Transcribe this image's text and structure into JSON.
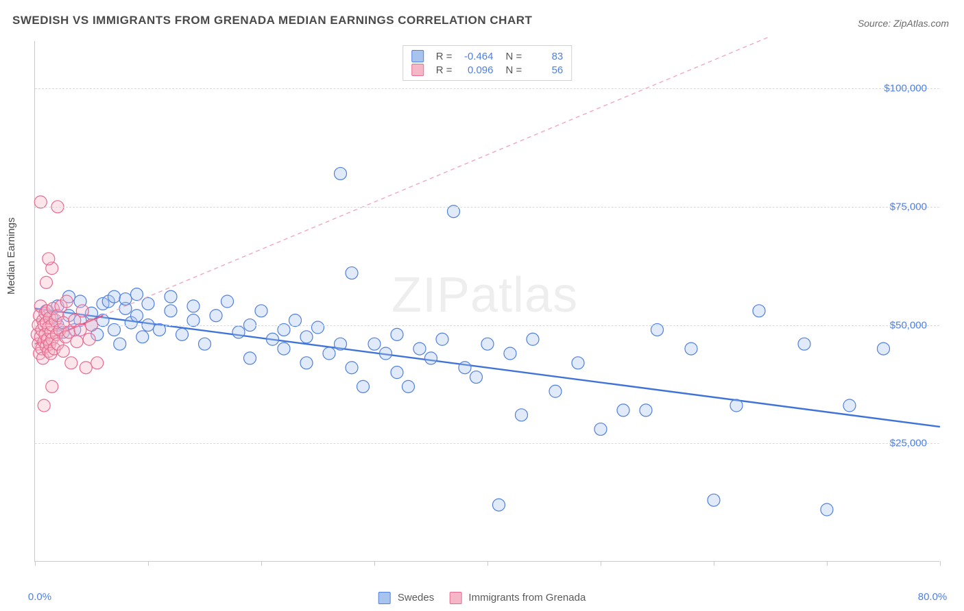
{
  "title": "SWEDISH VS IMMIGRANTS FROM GRENADA MEDIAN EARNINGS CORRELATION CHART",
  "source": "Source: ZipAtlas.com",
  "watermark": "ZIPatlas",
  "ylabel": "Median Earnings",
  "chart": {
    "type": "scatter",
    "xlim": [
      0,
      80
    ],
    "ylim": [
      0,
      110000
    ],
    "x_tick_label_left": "0.0%",
    "x_tick_label_right": "80.0%",
    "x_tick_positions": [
      0,
      10,
      20,
      30,
      40,
      50,
      60,
      70,
      80
    ],
    "y_ticks": [
      {
        "value": 25000,
        "label": "$25,000"
      },
      {
        "value": 50000,
        "label": "$50,000"
      },
      {
        "value": 75000,
        "label": "$75,000"
      },
      {
        "value": 100000,
        "label": "$100,000"
      }
    ],
    "grid_color": "#d9d9d9",
    "axis_color": "#c9c9c9",
    "background_color": "#ffffff",
    "tick_label_color": "#4f7fe0",
    "marker_radius": 9,
    "marker_stroke_width": 1.2,
    "marker_fill_opacity": 0.35,
    "series": [
      {
        "id": "swedes",
        "label": "Swedes",
        "color_fill": "#a7c3ee",
        "color_stroke": "#4f7fe0",
        "r": -0.464,
        "n": 83,
        "trend": {
          "x1": 0,
          "y1": 53500,
          "x2": 80,
          "y2": 28500,
          "dash": "none",
          "stroke": "#3f73d8",
          "width": 2.4
        },
        "points": [
          [
            1,
            53000
          ],
          [
            1.5,
            51500
          ],
          [
            2,
            50000
          ],
          [
            2,
            54000
          ],
          [
            2.5,
            48500
          ],
          [
            3,
            52000
          ],
          [
            3,
            56000
          ],
          [
            3.5,
            49000
          ],
          [
            4,
            55000
          ],
          [
            4,
            51000
          ],
          [
            5,
            52500
          ],
          [
            5,
            50000
          ],
          [
            5.5,
            48000
          ],
          [
            6,
            54500
          ],
          [
            6,
            51000
          ],
          [
            6.5,
            55000
          ],
          [
            7,
            49000
          ],
          [
            7,
            56000
          ],
          [
            7.5,
            46000
          ],
          [
            8,
            53500
          ],
          [
            8,
            55500
          ],
          [
            8.5,
            50500
          ],
          [
            9,
            56500
          ],
          [
            9,
            52000
          ],
          [
            9.5,
            47500
          ],
          [
            10,
            54500
          ],
          [
            10,
            50000
          ],
          [
            11,
            49000
          ],
          [
            12,
            53000
          ],
          [
            12,
            56000
          ],
          [
            13,
            48000
          ],
          [
            14,
            51000
          ],
          [
            14,
            54000
          ],
          [
            15,
            46000
          ],
          [
            16,
            52000
          ],
          [
            17,
            55000
          ],
          [
            18,
            48500
          ],
          [
            19,
            50000
          ],
          [
            19,
            43000
          ],
          [
            20,
            53000
          ],
          [
            21,
            47000
          ],
          [
            22,
            45000
          ],
          [
            22,
            49000
          ],
          [
            23,
            51000
          ],
          [
            24,
            42000
          ],
          [
            24,
            47500
          ],
          [
            25,
            49500
          ],
          [
            26,
            44000
          ],
          [
            27,
            82000
          ],
          [
            27,
            46000
          ],
          [
            28,
            41000
          ],
          [
            28,
            61000
          ],
          [
            29,
            37000
          ],
          [
            30,
            46000
          ],
          [
            31,
            44000
          ],
          [
            32,
            48000
          ],
          [
            32,
            40000
          ],
          [
            33,
            37000
          ],
          [
            34,
            45000
          ],
          [
            35,
            43000
          ],
          [
            36,
            47000
          ],
          [
            37,
            74000
          ],
          [
            38,
            41000
          ],
          [
            39,
            39000
          ],
          [
            40,
            46000
          ],
          [
            41,
            12000
          ],
          [
            42,
            44000
          ],
          [
            43,
            31000
          ],
          [
            44,
            47000
          ],
          [
            46,
            36000
          ],
          [
            48,
            42000
          ],
          [
            50,
            28000
          ],
          [
            52,
            32000
          ],
          [
            54,
            32000
          ],
          [
            55,
            49000
          ],
          [
            58,
            45000
          ],
          [
            60,
            13000
          ],
          [
            62,
            33000
          ],
          [
            64,
            53000
          ],
          [
            68,
            46000
          ],
          [
            70,
            11000
          ],
          [
            72,
            33000
          ],
          [
            75,
            45000
          ]
        ]
      },
      {
        "id": "grenada",
        "label": "Immigrants from Grenada",
        "color_fill": "#f5b7c8",
        "color_stroke": "#e86a8f",
        "r": 0.096,
        "n": 56,
        "trend": {
          "x1": 0,
          "y1": 46000,
          "x2": 6,
          "y2": 52000,
          "dash": "none",
          "stroke": "#e05080",
          "width": 2.2
        },
        "trend_extrapolate": {
          "x1": 6,
          "y1": 52000,
          "x2": 65,
          "y2": 111000,
          "dash": "6,5",
          "stroke": "#f0a8bc",
          "width": 1.4
        },
        "points": [
          [
            0.2,
            48000
          ],
          [
            0.3,
            50000
          ],
          [
            0.3,
            46000
          ],
          [
            0.4,
            52000
          ],
          [
            0.4,
            44000
          ],
          [
            0.5,
            47500
          ],
          [
            0.5,
            54000
          ],
          [
            0.6,
            45000
          ],
          [
            0.6,
            49000
          ],
          [
            0.7,
            51000
          ],
          [
            0.7,
            43000
          ],
          [
            0.8,
            50000
          ],
          [
            0.8,
            46500
          ],
          [
            0.9,
            48000
          ],
          [
            0.9,
            52500
          ],
          [
            1.0,
            45500
          ],
          [
            1.0,
            50500
          ],
          [
            1.1,
            47000
          ],
          [
            1.1,
            53000
          ],
          [
            1.2,
            44500
          ],
          [
            1.2,
            49500
          ],
          [
            1.3,
            51500
          ],
          [
            1.3,
            46000
          ],
          [
            1.4,
            48500
          ],
          [
            1.4,
            44000
          ],
          [
            1.5,
            50000
          ],
          [
            1.5,
            47000
          ],
          [
            1.6,
            53500
          ],
          [
            1.7,
            45000
          ],
          [
            1.8,
            51000
          ],
          [
            1.9,
            48000
          ],
          [
            2.0,
            46000
          ],
          [
            2.0,
            52000
          ],
          [
            2.2,
            49000
          ],
          [
            2.3,
            54000
          ],
          [
            2.5,
            44500
          ],
          [
            2.5,
            50500
          ],
          [
            2.7,
            47500
          ],
          [
            2.8,
            55000
          ],
          [
            3.0,
            48500
          ],
          [
            3.2,
            42000
          ],
          [
            3.5,
            51000
          ],
          [
            3.7,
            46500
          ],
          [
            4.0,
            49000
          ],
          [
            4.2,
            53000
          ],
          [
            4.5,
            41000
          ],
          [
            4.8,
            47000
          ],
          [
            5.0,
            50000
          ],
          [
            1.0,
            59000
          ],
          [
            1.5,
            62000
          ],
          [
            2.0,
            75000
          ],
          [
            0.5,
            76000
          ],
          [
            1.2,
            64000
          ],
          [
            0.8,
            33000
          ],
          [
            1.5,
            37000
          ],
          [
            5.5,
            42000
          ]
        ]
      }
    ]
  },
  "legend_bottom": [
    {
      "label": "Swedes",
      "fill": "#a7c3ee",
      "stroke": "#4f7fe0"
    },
    {
      "label": "Immigrants from Grenada",
      "fill": "#f5b7c8",
      "stroke": "#e86a8f"
    }
  ]
}
